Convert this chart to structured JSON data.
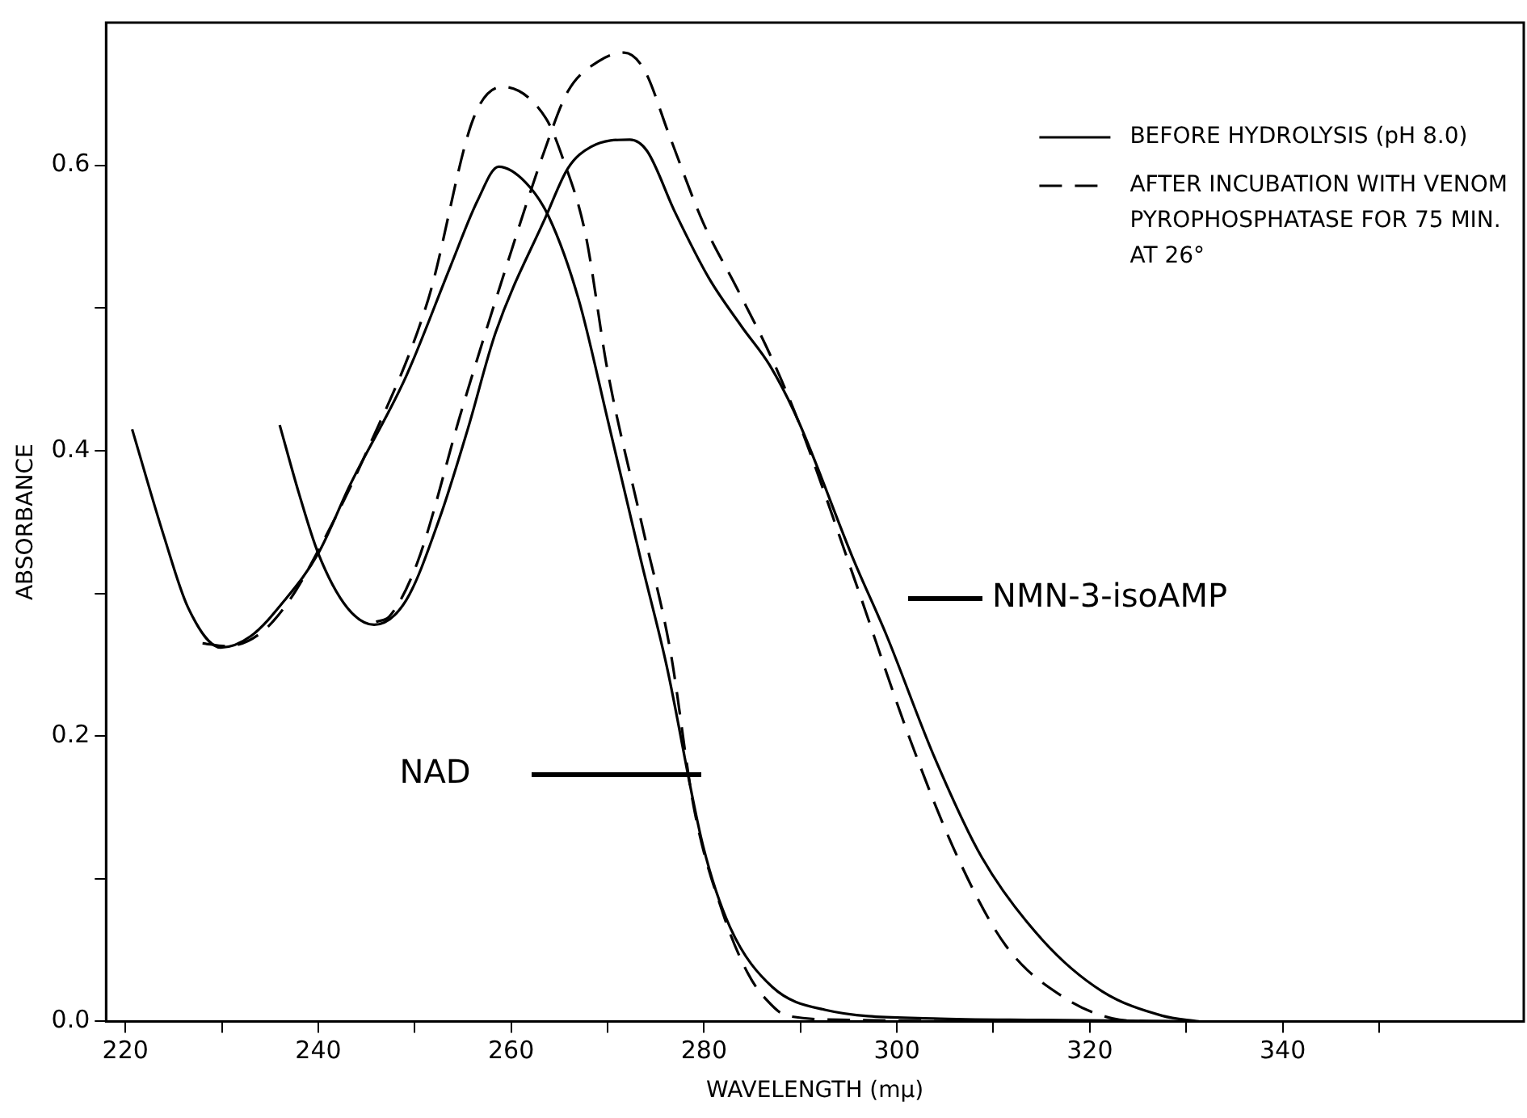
{
  "chart_data": {
    "type": "line",
    "xlabel": "WAVELENGTH (mμ)",
    "ylabel": "ABSORBANCE",
    "xlim": [
      218,
      365
    ],
    "ylim": [
      0,
      0.7
    ],
    "xticks": [
      220,
      {
        "value": 230,
        "label": null
      },
      240,
      {
        "value": 250,
        "label": null
      },
      260,
      {
        "value": 270,
        "label": null
      },
      280,
      {
        "value": 290,
        "label": null
      },
      300,
      {
        "value": 310,
        "label": null
      },
      320,
      {
        "value": 330,
        "label": null
      },
      340,
      {
        "value": 350,
        "label": null
      }
    ],
    "yticks": [
      {
        "value": 0,
        "label": "0.0"
      },
      {
        "value": 0.1,
        "label": null
      },
      0.2,
      {
        "value": 0.3,
        "label": null
      },
      0.4,
      {
        "value": 0.5,
        "label": null
      },
      0.6
    ],
    "grid": false,
    "legend": "top right",
    "marker": "none",
    "series": [
      {
        "name": "BEFORE HYDROLYSIS (pH 8.0)",
        "color": "#000000",
        "line_style": "solid",
        "x": [
          220.7,
          224,
          226.5,
          229.9,
          233,
          236.5,
          240,
          243.3,
          249.1,
          253.7,
          256.5,
          258.7,
          261.5,
          263.9,
          267,
          270,
          273.5,
          276.1,
          279.9,
          282.7,
          287.1,
          292.6,
          303.8,
          315,
          330
        ],
        "values": [
          0.415,
          0.34,
          0.29,
          0.262,
          0.27,
          0.295,
          0.328,
          0.376,
          0.452,
          0.529,
          0.575,
          0.599,
          0.588,
          0.564,
          0.506,
          0.422,
          0.322,
          0.25,
          0.123,
          0.066,
          0.024,
          0.008,
          0.002,
          0.001,
          0
        ]
      },
      {
        "name": "AFTER INCUBATION WITH VENOM PYROPHOSPHATASE FOR 75 MIN. AT 26°",
        "color": "#000000",
        "line_style": "dashed",
        "x": [
          228,
          230.5,
          234,
          237,
          240,
          245,
          251.4,
          256.1,
          259.1,
          263.6,
          265.3,
          267.7,
          270,
          273.5,
          276.5,
          279,
          282,
          284.6,
          286.5,
          288.6,
          295,
          310,
          330
        ],
        "values": [
          0.265,
          0.263,
          0.272,
          0.295,
          0.33,
          0.399,
          0.506,
          0.633,
          0.655,
          0.633,
          0.606,
          0.552,
          0.456,
          0.35,
          0.26,
          0.148,
          0.075,
          0.033,
          0.015,
          0.004,
          0.001,
          0,
          0
        ]
      },
      {
        "color": "#000000",
        "line_style": "solid",
        "x": [
          236,
          238,
          240,
          243,
          245.8,
          249.1,
          252.6,
          255.5,
          258.4,
          263.6,
          265.9,
          268.3,
          272.3,
          274.1,
          277,
          280.5,
          283.9,
          286.8,
          289.7,
          295.6,
          298.9,
          303.9,
          308.8,
          315.1,
          321.3,
          327.5,
          331.3
        ],
        "values": [
          0.418,
          0.37,
          0.328,
          0.29,
          0.278,
          0.295,
          0.353,
          0.415,
          0.483,
          0.564,
          0.598,
          0.613,
          0.618,
          0.61,
          0.567,
          0.521,
          0.487,
          0.46,
          0.422,
          0.322,
          0.271,
          0.185,
          0.115,
          0.057,
          0.021,
          0.004,
          0
        ]
      },
      {
        "color": "#000000",
        "line_style": "dashed",
        "x": [
          246,
          247.4,
          250.3,
          254.9,
          259.5,
          263.6,
          265.9,
          269.1,
          271.7,
          273.8,
          276.4,
          279.9,
          283.4,
          286.8,
          289.7,
          295.6,
          301.4,
          306.3,
          311.3,
          317.5,
          322.4,
          326
        ],
        "values": [
          0.28,
          0.284,
          0.322,
          0.429,
          0.529,
          0.613,
          0.652,
          0.673,
          0.679,
          0.667,
          0.621,
          0.56,
          0.514,
          0.468,
          0.422,
          0.31,
          0.197,
          0.115,
          0.053,
          0.016,
          0.002,
          0
        ]
      }
    ],
    "annotations": [
      "NAD",
      "NMN-3-isoAMP"
    ]
  }
}
